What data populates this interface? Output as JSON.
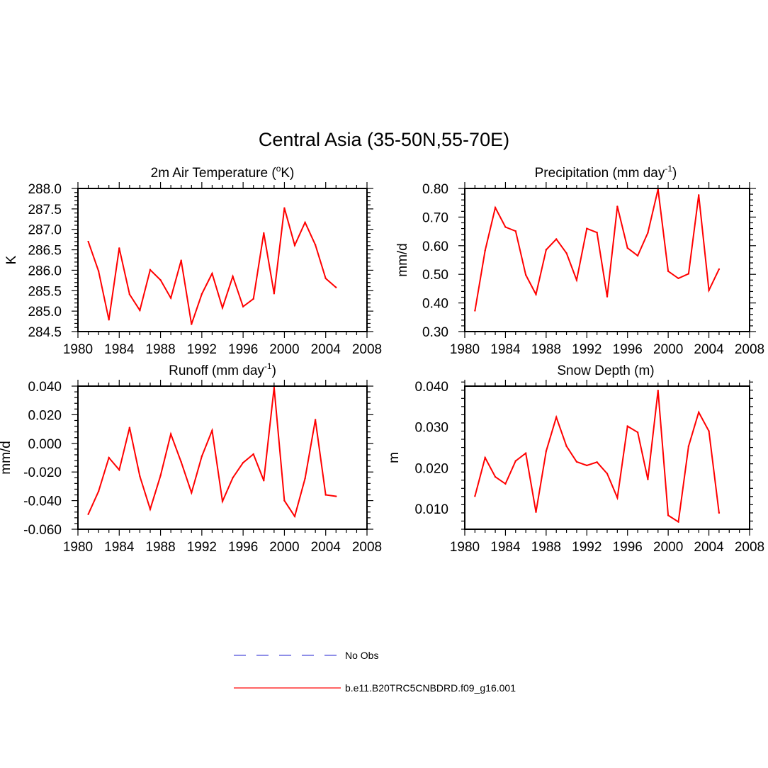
{
  "figure": {
    "title": "Central Asia (35-50N,55-70E)"
  },
  "legend": {
    "entries": [
      {
        "label": "No Obs",
        "color": "#6a6ae0",
        "style": "dashed"
      },
      {
        "label": "b.e11.B20TRC5CNBDRD.f09_g16.001",
        "color": "#ff3030",
        "style": "solid"
      }
    ]
  },
  "chart_data": [
    {
      "type": "line",
      "id": "temperature",
      "title": "2m Air Temperature (",
      "title_sup": "o",
      "title_end": "K)",
      "ylabel": "K",
      "xlabel": "",
      "xlim": [
        1980,
        2008
      ],
      "ylim": [
        284.5,
        288.0
      ],
      "xticks": [
        "1980",
        "1984",
        "1988",
        "1992",
        "1996",
        "2000",
        "2004",
        "2008"
      ],
      "yticks": [
        "284.5",
        "285.0",
        "285.5",
        "286.0",
        "286.5",
        "287.0",
        "287.5",
        "288.0"
      ],
      "color": "#ff0000",
      "x": [
        1981,
        1982,
        1983,
        1984,
        1985,
        1986,
        1987,
        1988,
        1989,
        1990,
        1991,
        1992,
        1993,
        1994,
        1995,
        1996,
        1997,
        1998,
        1999,
        2000,
        2001,
        2002,
        2003,
        2004,
        2005
      ],
      "values": [
        286.7,
        285.98,
        284.79,
        286.54,
        285.41,
        285.02,
        286.01,
        285.76,
        285.32,
        286.24,
        284.68,
        285.42,
        285.92,
        285.08,
        285.85,
        285.11,
        285.3,
        286.91,
        285.43,
        287.52,
        286.61,
        287.17,
        286.62,
        285.8,
        285.58
      ]
    },
    {
      "type": "line",
      "id": "precipitation",
      "title": "Precipitation (mm day",
      "title_sup": "-1",
      "title_end": ")",
      "ylabel": "mm/d",
      "xlabel": "",
      "xlim": [
        1980,
        2008
      ],
      "ylim": [
        0.3,
        0.8
      ],
      "xticks": [
        "1980",
        "1984",
        "1988",
        "1992",
        "1996",
        "2000",
        "2004",
        "2008"
      ],
      "yticks": [
        "0.30",
        "0.40",
        "0.50",
        "0.60",
        "0.70",
        "0.80"
      ],
      "color": "#ff0000",
      "x": [
        1981,
        1982,
        1983,
        1984,
        1985,
        1986,
        1987,
        1988,
        1989,
        1990,
        1991,
        1992,
        1993,
        1994,
        1995,
        1996,
        1997,
        1998,
        1999,
        2000,
        2001,
        2002,
        2003,
        2004,
        2005
      ],
      "values": [
        0.373,
        0.583,
        0.733,
        0.665,
        0.651,
        0.498,
        0.43,
        0.586,
        0.623,
        0.574,
        0.48,
        0.66,
        0.646,
        0.422,
        0.737,
        0.592,
        0.565,
        0.645,
        0.797,
        0.511,
        0.486,
        0.502,
        0.777,
        0.444,
        0.518
      ]
    },
    {
      "type": "line",
      "id": "runoff",
      "title": "Runoff (mm day",
      "title_sup": "-1",
      "title_end": ")",
      "ylabel": "mm/d",
      "xlabel": "",
      "xlim": [
        1980,
        2008
      ],
      "ylim": [
        -0.06,
        0.04
      ],
      "xticks": [
        "1980",
        "1984",
        "1988",
        "1992",
        "1996",
        "2000",
        "2004",
        "2008"
      ],
      "yticks": [
        "-0.060",
        "-0.040",
        "-0.020",
        "0.000",
        "0.020",
        "0.040"
      ],
      "color": "#ff0000",
      "x": [
        1981,
        1982,
        1983,
        1984,
        1985,
        1986,
        1987,
        1988,
        1989,
        1990,
        1991,
        1992,
        1993,
        1994,
        1995,
        1996,
        1997,
        1998,
        1999,
        2000,
        2001,
        2002,
        2003,
        2004,
        2005
      ],
      "values": [
        -0.0495,
        -0.0335,
        -0.01,
        -0.0185,
        0.011,
        -0.023,
        -0.046,
        -0.0225,
        0.0065,
        -0.013,
        -0.0345,
        -0.009,
        0.009,
        -0.0405,
        -0.024,
        -0.0135,
        -0.0075,
        -0.026,
        0.039,
        -0.04,
        -0.051,
        -0.0245,
        0.0165,
        -0.036,
        -0.037
      ]
    },
    {
      "type": "line",
      "id": "snow",
      "title": "Snow Depth (m)",
      "title_sup": "",
      "title_end": "",
      "ylabel": "m",
      "xlabel": "",
      "xlim": [
        1980,
        2008
      ],
      "ylim": [
        0.005,
        0.04
      ],
      "xticks": [
        "1980",
        "1984",
        "1988",
        "1992",
        "1996",
        "2000",
        "2004",
        "2008"
      ],
      "yticks": [
        "0.010",
        "0.020",
        "0.030",
        "0.040"
      ],
      "color": "#ff0000",
      "x": [
        1981,
        1982,
        1983,
        1984,
        1985,
        1986,
        1987,
        1988,
        1989,
        1990,
        1991,
        1992,
        1993,
        1994,
        1995,
        1996,
        1997,
        1998,
        1999,
        2000,
        2001,
        2002,
        2003,
        2004,
        2005
      ],
      "values": [
        0.0131,
        0.0225,
        0.0178,
        0.0161,
        0.0217,
        0.0236,
        0.0092,
        0.0241,
        0.0324,
        0.0253,
        0.0215,
        0.0206,
        0.0214,
        0.0186,
        0.0127,
        0.0302,
        0.0287,
        0.0172,
        0.0389,
        0.0084,
        0.0068,
        0.0253,
        0.0336,
        0.029,
        0.009
      ]
    }
  ]
}
